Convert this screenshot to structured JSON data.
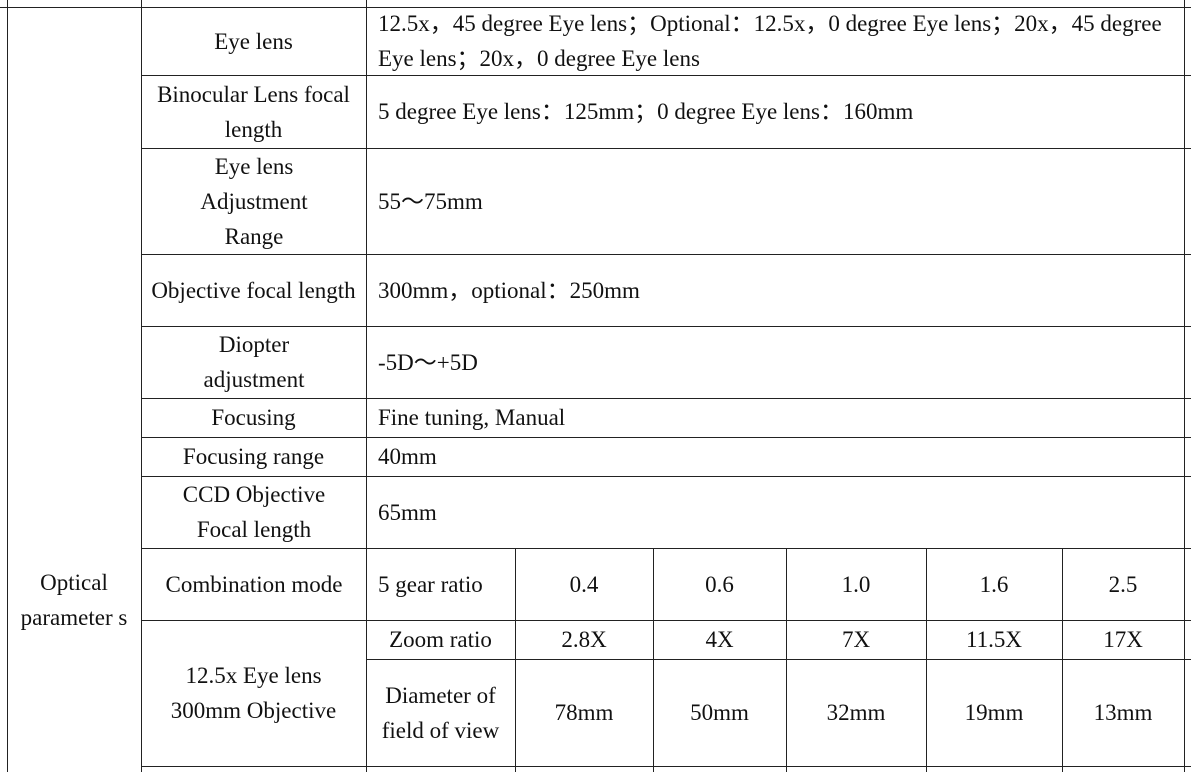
{
  "table": {
    "category": "Optical parameter s",
    "rows": [
      {
        "label": "Eye lens",
        "value": "12.5x，45 degree Eye lens；Optional：12.5x，0 degree Eye lens；20x，45 degree Eye lens；20x，0 degree Eye lens"
      },
      {
        "label": "Binocular Lens focal length",
        "value": "5 degree Eye lens：125mm；0 degree Eye lens：160mm"
      },
      {
        "label": "Eye lens Adjustment Range",
        "value": "55～75mm"
      },
      {
        "label": "Objective focal length",
        "value": "300mm，optional：250mm"
      },
      {
        "label": "Diopter adjustment",
        "value": "-5D～+5D"
      },
      {
        "label": "Focusing",
        "value": "Fine tuning, Manual"
      },
      {
        "label": "Focusing range",
        "value": "40mm"
      },
      {
        "label": "CCD Objective Focal length",
        "value": "65mm"
      }
    ],
    "combination": {
      "label": "Combination mode",
      "sub_label": "5 gear ratio",
      "values": [
        "0.4",
        "0.6",
        "1.0",
        "1.6",
        "2.5"
      ]
    },
    "objective_group": {
      "label": "12.5x Eye lens 300mm Objective",
      "zoom": {
        "label": "Zoom ratio",
        "values": [
          "2.8X",
          "4X",
          "7X",
          "11.5X",
          "17X"
        ]
      },
      "field": {
        "label": "Diameter of field of view",
        "values": [
          "78mm",
          "50mm",
          "32mm",
          "19mm",
          "13mm"
        ]
      }
    }
  }
}
